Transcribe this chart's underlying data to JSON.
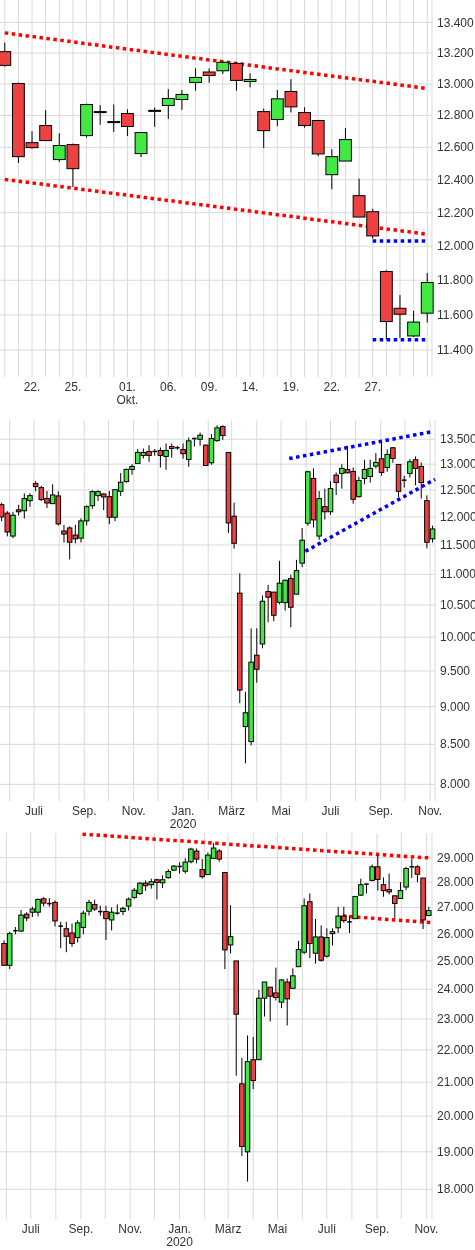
{
  "chart_data": [
    {
      "type": "candlestick",
      "log": true,
      "grid": true,
      "ylim": [
        11250,
        13550
      ],
      "yticks": [
        {
          "value": 11400,
          "label": "11.400"
        },
        {
          "value": 11600,
          "label": "11.600"
        },
        {
          "value": 11800,
          "label": "11.800"
        },
        {
          "value": 12000,
          "label": "12.000"
        },
        {
          "value": 12200,
          "label": "12.200"
        },
        {
          "value": 12400,
          "label": "12.400"
        },
        {
          "value": 12600,
          "label": "12.600"
        },
        {
          "value": 12800,
          "label": "12.800"
        },
        {
          "value": 13000,
          "label": "13.000"
        },
        {
          "value": 13200,
          "label": "13.200"
        },
        {
          "value": 13400,
          "label": "13.400"
        }
      ],
      "categories": [
        null,
        null,
        "22.",
        null,
        null,
        "25.",
        null,
        null,
        null,
        "01.\nOkt.",
        null,
        null,
        "06.",
        null,
        null,
        "09.",
        null,
        null,
        "14.",
        null,
        null,
        "19.",
        null,
        null,
        "22.",
        null,
        null,
        "27.",
        null,
        null,
        null,
        null
      ],
      "ohlc": [
        [
          13209,
          13268,
          13110,
          13120
        ],
        [
          13003,
          13010,
          12503,
          12542
        ],
        [
          12629,
          12700,
          12592,
          12598
        ],
        [
          12736,
          12833,
          12642,
          12642
        ],
        [
          12524,
          12688,
          12509,
          12611
        ],
        [
          12617,
          12623,
          12356,
          12468
        ],
        [
          12673,
          12875,
          12661,
          12869
        ],
        [
          12824,
          12865,
          12742,
          12820
        ],
        [
          12761,
          12869,
          12696,
          12757
        ],
        [
          12812,
          12839,
          12671,
          12730
        ],
        [
          12561,
          12692,
          12540,
          12692
        ],
        [
          12832,
          12850,
          12728,
          12830
        ],
        [
          12863,
          12967,
          12778,
          12907
        ],
        [
          12901,
          12961,
          12835,
          12933
        ],
        [
          13010,
          13100,
          12957,
          13042
        ],
        [
          13077,
          13100,
          13008,
          13055
        ],
        [
          13085,
          13144,
          13064,
          13140
        ],
        [
          13133,
          13140,
          12957,
          13023
        ],
        [
          13016,
          13068,
          12978,
          13029
        ],
        [
          12824,
          12843,
          12596,
          12704
        ],
        [
          12774,
          12961,
          12732,
          12905
        ],
        [
          12952,
          13031,
          12820,
          12854
        ],
        [
          12818,
          12852,
          12722,
          12736
        ],
        [
          12768,
          12770,
          12545,
          12559
        ],
        [
          12431,
          12588,
          12342,
          12542
        ],
        [
          12515,
          12720,
          12515,
          12648
        ],
        [
          12303,
          12407,
          12174,
          12174
        ],
        [
          12206,
          12224,
          12045,
          12061
        ],
        [
          11851,
          11859,
          11459,
          11562
        ],
        [
          11638,
          11714,
          11469,
          11604
        ],
        [
          11480,
          11623,
          11475,
          11559
        ],
        [
          11610,
          11843,
          11557,
          11787
        ]
      ],
      "series": [
        {
          "type": "line",
          "color": "#ff0000",
          "line_style": "dotted",
          "values": [
            13332,
            13320,
            13308,
            13296,
            13285,
            13273,
            13261,
            13249,
            13237,
            13225,
            13214,
            13202,
            13190,
            13179,
            13167,
            13155,
            13144,
            13132,
            13121,
            13109,
            13097,
            13086,
            13074,
            13063,
            13051,
            13040,
            13028,
            13017,
            13006,
            12994,
            12983,
            12971
          ]
        },
        {
          "type": "line",
          "color": "#ff0000",
          "line_style": "dotted",
          "values": [
            12402,
            12391,
            12381,
            12370,
            12359,
            12349,
            12338,
            12327,
            12316,
            12306,
            12295,
            12284,
            12274,
            12263,
            12252,
            12242,
            12231,
            12220,
            12210,
            12199,
            12188,
            12178,
            12167,
            12156,
            12146,
            12135,
            12124,
            12114,
            12103,
            12092,
            12082,
            12071
          ]
        },
        {
          "type": "line",
          "color": "#0000ff",
          "line_style": "dotted",
          "values": [
            null,
            null,
            null,
            null,
            null,
            null,
            null,
            null,
            null,
            null,
            null,
            null,
            null,
            null,
            null,
            null,
            null,
            null,
            null,
            null,
            null,
            null,
            null,
            null,
            null,
            null,
            null,
            12031,
            12031,
            12031,
            12031,
            12031
          ]
        },
        {
          "type": "line",
          "color": "#0000ff",
          "line_style": "dotted",
          "values": [
            null,
            null,
            null,
            null,
            null,
            null,
            null,
            null,
            null,
            null,
            null,
            null,
            null,
            null,
            null,
            null,
            null,
            null,
            null,
            null,
            null,
            null,
            null,
            null,
            null,
            null,
            null,
            11459,
            11459,
            11459,
            11459,
            11459
          ]
        }
      ]
    },
    {
      "type": "candlestick",
      "log": true,
      "grid": true,
      "ylim": [
        7800,
        13900
      ],
      "yticks": [
        {
          "value": 8000,
          "label": "8.000"
        },
        {
          "value": 8500,
          "label": "8.500"
        },
        {
          "value": 9000,
          "label": "9.000"
        },
        {
          "value": 9500,
          "label": "9.500"
        },
        {
          "value": 10000,
          "label": "10.000"
        },
        {
          "value": 10500,
          "label": "10.500"
        },
        {
          "value": 11000,
          "label": "11.000"
        },
        {
          "value": 11500,
          "label": "11.500"
        },
        {
          "value": 12000,
          "label": "12.000"
        },
        {
          "value": 12500,
          "label": "12.500"
        },
        {
          "value": 13000,
          "label": "13.000"
        },
        {
          "value": 13500,
          "label": "13.500"
        }
      ],
      "xlim": [
        "2019-05-20",
        "2020-11-07"
      ],
      "xticks": [
        {
          "value": "2019-06-01",
          "label": null
        },
        {
          "value": "2019-07-01",
          "label": "Juli"
        },
        {
          "value": "2019-08-01",
          "label": null
        },
        {
          "value": "2019-09-01",
          "label": "Sep."
        },
        {
          "value": "2019-10-01",
          "label": null
        },
        {
          "value": "2019-11-01",
          "label": "Nov."
        },
        {
          "value": "2019-12-01",
          "label": null
        },
        {
          "value": "2020-01-01",
          "label": "Jan.\n2020"
        },
        {
          "value": "2020-02-01",
          "label": null
        },
        {
          "value": "2020-03-01",
          "label": "März"
        },
        {
          "value": "2020-04-01",
          "label": null
        },
        {
          "value": "2020-05-01",
          "label": "Mai"
        },
        {
          "value": "2020-06-01",
          "label": null
        },
        {
          "value": "2020-07-01",
          "label": "Juli"
        },
        {
          "value": "2020-08-01",
          "label": null
        },
        {
          "value": "2020-09-01",
          "label": "Sep."
        },
        {
          "value": "2020-10-01",
          "label": null
        },
        {
          "value": "2020-11-01",
          "label": "Nov."
        }
      ],
      "x": [
        "2019-05-22",
        "2019-05-29",
        "2019-06-05",
        "2019-06-12",
        "2019-06-19",
        "2019-06-26",
        "2019-07-03",
        "2019-07-10",
        "2019-07-17",
        "2019-07-24",
        "2019-07-31",
        "2019-08-07",
        "2019-08-14",
        "2019-08-21",
        "2019-08-28",
        "2019-09-04",
        "2019-09-11",
        "2019-09-18",
        "2019-09-25",
        "2019-10-02",
        "2019-10-09",
        "2019-10-16",
        "2019-10-23",
        "2019-10-30",
        "2019-11-06",
        "2019-11-13",
        "2019-11-20",
        "2019-11-27",
        "2019-12-04",
        "2019-12-11",
        "2019-12-18",
        "2019-12-25",
        "2020-01-01",
        "2020-01-08",
        "2020-01-15",
        "2020-01-22",
        "2020-01-29",
        "2020-02-05",
        "2020-02-12",
        "2020-02-19",
        "2020-02-26",
        "2020-03-04",
        "2020-03-11",
        "2020-03-18",
        "2020-03-25",
        "2020-04-01",
        "2020-04-08",
        "2020-04-15",
        "2020-04-22",
        "2020-04-29",
        "2020-05-06",
        "2020-05-13",
        "2020-05-20",
        "2020-05-27",
        "2020-06-03",
        "2020-06-10",
        "2020-06-17",
        "2020-06-24",
        "2020-07-01",
        "2020-07-08",
        "2020-07-15",
        "2020-07-22",
        "2020-07-29",
        "2020-08-05",
        "2020-08-12",
        "2020-08-19",
        "2020-08-26",
        "2020-09-02",
        "2020-09-09",
        "2020-09-16",
        "2020-09-23",
        "2020-09-30",
        "2020-10-07",
        "2020-10-14",
        "2020-10-21",
        "2020-10-28",
        "2020-11-04"
      ],
      "ohlc": [
        [
          12225,
          12262,
          11922,
          12000
        ],
        [
          12069,
          12106,
          11651,
          11729
        ],
        [
          11657,
          12094,
          11620,
          12031
        ],
        [
          12131,
          12225,
          12025,
          12094
        ],
        [
          12113,
          12438,
          11970,
          12338
        ],
        [
          12300,
          12438,
          12181,
          12394
        ],
        [
          12623,
          12669,
          12475,
          12565
        ],
        [
          12545,
          12578,
          12294,
          12319
        ],
        [
          12338,
          12481,
          12163,
          12256
        ],
        [
          12244,
          12610,
          12244,
          12406
        ],
        [
          12388,
          12475,
          11843,
          11874
        ],
        [
          11747,
          11856,
          11542,
          11693
        ],
        [
          11801,
          11831,
          11250,
          11548
        ],
        [
          11675,
          11856,
          11530,
          11608
        ],
        [
          11620,
          11976,
          11542,
          11928
        ],
        [
          11928,
          12213,
          11843,
          12188
        ],
        [
          12206,
          12494,
          12150,
          12469
        ],
        [
          12394,
          12494,
          12294,
          12469
        ],
        [
          12425,
          12438,
          12125,
          12369
        ],
        [
          12375,
          12481,
          11868,
          11994
        ],
        [
          11994,
          12506,
          11922,
          12506
        ],
        [
          12475,
          12825,
          12388,
          12649
        ],
        [
          12662,
          12916,
          12636,
          12896
        ],
        [
          12896,
          13000,
          12792,
          12955
        ],
        [
          13013,
          13300,
          13013,
          13233
        ],
        [
          13173,
          13313,
          13113,
          13233
        ],
        [
          13253,
          13380,
          13047,
          13173
        ],
        [
          13253,
          13300,
          13167,
          13253
        ],
        [
          13273,
          13333,
          12935,
          13173
        ],
        [
          13153,
          13413,
          12890,
          13273
        ],
        [
          13353,
          13413,
          13127,
          13313
        ],
        [
          13327,
          13367,
          13287,
          13327
        ],
        [
          13293,
          13413,
          13107,
          13207
        ],
        [
          13093,
          13535,
          12948,
          13467
        ],
        [
          13514,
          13535,
          13353,
          13514
        ],
        [
          13500,
          13638,
          13367,
          13583
        ],
        [
          13380,
          13393,
          12974,
          12974
        ],
        [
          13027,
          13604,
          12987,
          13514
        ],
        [
          13473,
          13790,
          13447,
          13735
        ],
        [
          13762,
          13790,
          13487,
          13576
        ],
        [
          13233,
          13233,
          11711,
          11891
        ],
        [
          12013,
          12262,
          11438,
          11530
        ],
        [
          10690,
          11017,
          9048,
          9229
        ],
        [
          8733,
          9205,
          8258,
          8917
        ],
        [
          8535,
          10135,
          8487,
          9627
        ],
        [
          9730,
          10135,
          9333,
          9525
        ],
        [
          9897,
          10652,
          9833,
          10560
        ],
        [
          10717,
          10826,
          10229,
          10625
        ],
        [
          10707,
          10707,
          10245,
          10338
        ],
        [
          10543,
          11227,
          10510,
          10853
        ],
        [
          10538,
          10908,
          10411,
          10902
        ],
        [
          10929,
          10989,
          10151,
          10464
        ],
        [
          10674,
          11244,
          10674,
          11062
        ],
        [
          11188,
          11801,
          11119,
          11584
        ],
        [
          11886,
          12870,
          11843,
          12851
        ],
        [
          12721,
          12916,
          11813,
          11946
        ],
        [
          11657,
          12481,
          11590,
          12338
        ],
        [
          12188,
          12526,
          11952,
          12094
        ],
        [
          12094,
          12669,
          12038,
          12526
        ],
        [
          12786,
          12838,
          12406,
          12643
        ],
        [
          12818,
          13000,
          12526,
          12916
        ],
        [
          12896,
          13367,
          12818,
          12831
        ],
        [
          12857,
          12935,
          12244,
          12325
        ],
        [
          12375,
          12753,
          12356,
          12682
        ],
        [
          12721,
          13087,
          12610,
          12896
        ],
        [
          12760,
          13087,
          12643,
          12916
        ],
        [
          12961,
          13220,
          12916,
          13033
        ],
        [
          13107,
          13447,
          12773,
          12838
        ],
        [
          12935,
          13293,
          12851,
          13193
        ],
        [
          13327,
          13340,
          13027,
          13113
        ],
        [
          12994,
          12994,
          12369,
          12475
        ],
        [
          12688,
          12773,
          12545,
          12688
        ],
        [
          12818,
          13100,
          12740,
          13047
        ],
        [
          13087,
          13153,
          12591,
          12916
        ],
        [
          12955,
          13033,
          12338,
          12643
        ],
        [
          12300,
          12400,
          11443,
          11548
        ],
        [
          11608,
          11843,
          11542,
          11783
        ]
      ],
      "series": [
        {
          "type": "line",
          "color": "#0000ff",
          "line_style": "dotted",
          "x": [
            "2020-05-11",
            "2020-11-02"
          ],
          "values": [
            13110,
            13651
          ]
        },
        {
          "type": "line",
          "color": "#0000ff",
          "line_style": "dotted",
          "x": [
            "2020-05-31",
            "2020-11-07"
          ],
          "values": [
            11390,
            12704
          ]
        }
      ]
    },
    {
      "type": "candlestick",
      "log": true,
      "grid": true,
      "ylim": [
        17250,
        30050
      ],
      "yticks": [
        {
          "value": 18000,
          "label": "18.000"
        },
        {
          "value": 19000,
          "label": "19.000"
        },
        {
          "value": 20000,
          "label": "20.000"
        },
        {
          "value": 21000,
          "label": "21.000"
        },
        {
          "value": 22000,
          "label": "22.000"
        },
        {
          "value": 23000,
          "label": "23.000"
        },
        {
          "value": 24000,
          "label": "24.000"
        },
        {
          "value": 25000,
          "label": "25.000"
        },
        {
          "value": 26000,
          "label": "26.000"
        },
        {
          "value": 27000,
          "label": "27.000"
        },
        {
          "value": 28000,
          "label": "28.000"
        },
        {
          "value": 29000,
          "label": "29.000"
        }
      ],
      "xlim": [
        "2019-05-24",
        "2020-11-08"
      ],
      "xticks": [
        {
          "value": "2019-06-01",
          "label": null
        },
        {
          "value": "2019-07-01",
          "label": "Juli"
        },
        {
          "value": "2019-08-01",
          "label": null
        },
        {
          "value": "2019-09-01",
          "label": "Sep."
        },
        {
          "value": "2019-10-01",
          "label": null
        },
        {
          "value": "2019-11-01",
          "label": "Nov."
        },
        {
          "value": "2019-12-01",
          "label": null
        },
        {
          "value": "2020-01-01",
          "label": "Jan.\n2020"
        },
        {
          "value": "2020-02-01",
          "label": null
        },
        {
          "value": "2020-03-01",
          "label": "März"
        },
        {
          "value": "2020-04-01",
          "label": null
        },
        {
          "value": "2020-05-01",
          "label": "Mai"
        },
        {
          "value": "2020-06-01",
          "label": null
        },
        {
          "value": "2020-07-01",
          "label": "Juli"
        },
        {
          "value": "2020-08-01",
          "label": null
        },
        {
          "value": "2020-09-01",
          "label": "Sep."
        },
        {
          "value": "2020-10-01",
          "label": null
        },
        {
          "value": "2020-11-01",
          "label": "Nov."
        }
      ],
      "x": [
        "2019-05-29",
        "2019-06-05",
        "2019-06-12",
        "2019-06-19",
        "2019-06-26",
        "2019-07-03",
        "2019-07-10",
        "2019-07-17",
        "2019-07-24",
        "2019-07-31",
        "2019-08-07",
        "2019-08-14",
        "2019-08-21",
        "2019-08-28",
        "2019-09-04",
        "2019-09-11",
        "2019-09-18",
        "2019-09-25",
        "2019-10-02",
        "2019-10-09",
        "2019-10-16",
        "2019-10-23",
        "2019-10-30",
        "2019-11-06",
        "2019-11-13",
        "2019-11-20",
        "2019-11-27",
        "2019-12-04",
        "2019-12-11",
        "2019-12-18",
        "2019-12-25",
        "2020-01-01",
        "2020-01-08",
        "2020-01-15",
        "2020-01-22",
        "2020-01-29",
        "2020-02-05",
        "2020-02-12",
        "2020-02-19",
        "2020-02-26",
        "2020-03-04",
        "2020-03-11",
        "2020-03-18",
        "2020-03-25",
        "2020-04-01",
        "2020-04-08",
        "2020-04-15",
        "2020-04-22",
        "2020-04-29",
        "2020-05-06",
        "2020-05-13",
        "2020-05-20",
        "2020-05-27",
        "2020-06-03",
        "2020-06-10",
        "2020-06-17",
        "2020-06-24",
        "2020-07-01",
        "2020-07-08",
        "2020-07-15",
        "2020-07-22",
        "2020-07-29",
        "2020-08-05",
        "2020-08-12",
        "2020-08-19",
        "2020-08-26",
        "2020-09-02",
        "2020-09-09",
        "2020-09-16",
        "2020-09-23",
        "2020-09-30",
        "2020-10-07",
        "2020-10-14",
        "2020-10-21",
        "2020-10-28",
        "2020-11-04"
      ],
      "ohlc": [
        [
          25634,
          25756,
          24831,
          24843
        ],
        [
          24843,
          26074,
          24711,
          26000
        ],
        [
          26111,
          26247,
          25976,
          26111
        ],
        [
          26099,
          26901,
          26062,
          26704
        ],
        [
          26741,
          26815,
          26469,
          26593
        ],
        [
          26815,
          27026,
          26630,
          26938
        ],
        [
          26815,
          27351,
          26654,
          27312
        ],
        [
          27338,
          27403,
          27039,
          27169
        ],
        [
          27150,
          27364,
          27026,
          27150
        ],
        [
          27195,
          27273,
          26272,
          26482
        ],
        [
          26284,
          26444,
          25463,
          26284
        ],
        [
          26185,
          26444,
          25317,
          25902
        ],
        [
          26025,
          26383,
          25512,
          25634
        ],
        [
          25854,
          26506,
          25671,
          26407
        ],
        [
          26235,
          26877,
          25976,
          26778
        ],
        [
          26852,
          27299,
          26691,
          27195
        ],
        [
          27117,
          27299,
          26864,
          26938
        ],
        [
          26840,
          27065,
          26679,
          26840
        ],
        [
          26840,
          27065,
          25768,
          26568
        ],
        [
          26519,
          27000,
          26123,
          26815
        ],
        [
          26778,
          27117,
          26716,
          26778
        ],
        [
          26840,
          27026,
          26704,
          26963
        ],
        [
          27052,
          27390,
          26877,
          27325
        ],
        [
          27390,
          27766,
          27338,
          27675
        ],
        [
          27545,
          28000,
          27481,
          27961
        ],
        [
          27961,
          28070,
          27649,
          27857
        ],
        [
          27896,
          28139,
          27740,
          28014
        ],
        [
          28097,
          28139,
          27312,
          27987
        ],
        [
          27974,
          28278,
          27766,
          28097
        ],
        [
          28180,
          28527,
          28139,
          28430
        ],
        [
          28486,
          28694,
          28458,
          28653
        ],
        [
          28639,
          28805,
          28347,
          28639
        ],
        [
          28444,
          28972,
          28347,
          28819
        ],
        [
          28833,
          29420,
          28764,
          29364
        ],
        [
          29280,
          29392,
          28764,
          28944
        ],
        [
          28514,
          28944,
          28139,
          28222
        ],
        [
          28305,
          29224,
          28305,
          29111
        ],
        [
          28972,
          29616,
          28944,
          29406
        ],
        [
          29280,
          29364,
          28833,
          28944
        ],
        [
          28389,
          28389,
          24711,
          25402
        ],
        [
          25585,
          27091,
          25268,
          25890
        ],
        [
          25000,
          25000,
          21200,
          23157
        ],
        [
          20951,
          21750,
          18885,
          19146
        ],
        [
          19000,
          22462,
          18204,
          21630
        ],
        [
          21690,
          22409,
          20794,
          21051
        ],
        [
          21690,
          23978,
          21690,
          23697
        ],
        [
          23697,
          24253,
          23079,
          24253
        ],
        [
          24075,
          24075,
          22914,
          23764
        ],
        [
          23876,
          24759,
          23618,
          23719
        ],
        [
          23562,
          24351,
          23360,
          24327
        ],
        [
          24253,
          24375,
          22785,
          23674
        ],
        [
          24036,
          24735,
          24036,
          24472
        ],
        [
          24795,
          25732,
          24795,
          25415
        ],
        [
          25317,
          27351,
          25244,
          27065
        ],
        [
          27221,
          27545,
          25098,
          25634
        ],
        [
          25280,
          26555,
          24904,
          25878
        ],
        [
          25878,
          26309,
          24976,
          25024
        ],
        [
          25171,
          26198,
          25122,
          25854
        ],
        [
          26000,
          26198,
          25561,
          26074
        ],
        [
          26222,
          27026,
          26025,
          26667
        ],
        [
          26667,
          27026,
          26407,
          26494
        ],
        [
          26444,
          26691,
          26025,
          26444
        ],
        [
          26568,
          27429,
          26568,
          27429
        ],
        [
          27481,
          28139,
          27455,
          27896
        ],
        [
          27922,
          27922,
          27545,
          27922
        ],
        [
          28070,
          28722,
          28031,
          28625
        ],
        [
          28625,
          29111,
          27662,
          28110
        ],
        [
          27896,
          28194,
          27416,
          27662
        ],
        [
          27701,
          28347,
          27507,
          27610
        ],
        [
          27455,
          27455,
          26593,
          27156
        ],
        [
          27351,
          28000,
          27351,
          27662
        ],
        [
          27805,
          28625,
          27675,
          28555
        ],
        [
          28625,
          28944,
          28166,
          28625
        ],
        [
          28625,
          28694,
          28000,
          28319
        ],
        [
          28166,
          28166,
          26173,
          26519
        ],
        [
          26691,
          27026,
          26654,
          26877
        ]
      ],
      "series": [
        {
          "type": "line",
          "color": "#ff0000",
          "line_style": "dotted",
          "x": [
            "2019-09-03",
            "2020-11-07"
          ],
          "values": [
            30000,
            28986
          ]
        },
        {
          "type": "line",
          "color": "#ff0000",
          "line_style": "dotted",
          "x": [
            "2020-07-21",
            "2020-11-08"
          ],
          "values": [
            26665,
            26420
          ]
        }
      ]
    }
  ]
}
